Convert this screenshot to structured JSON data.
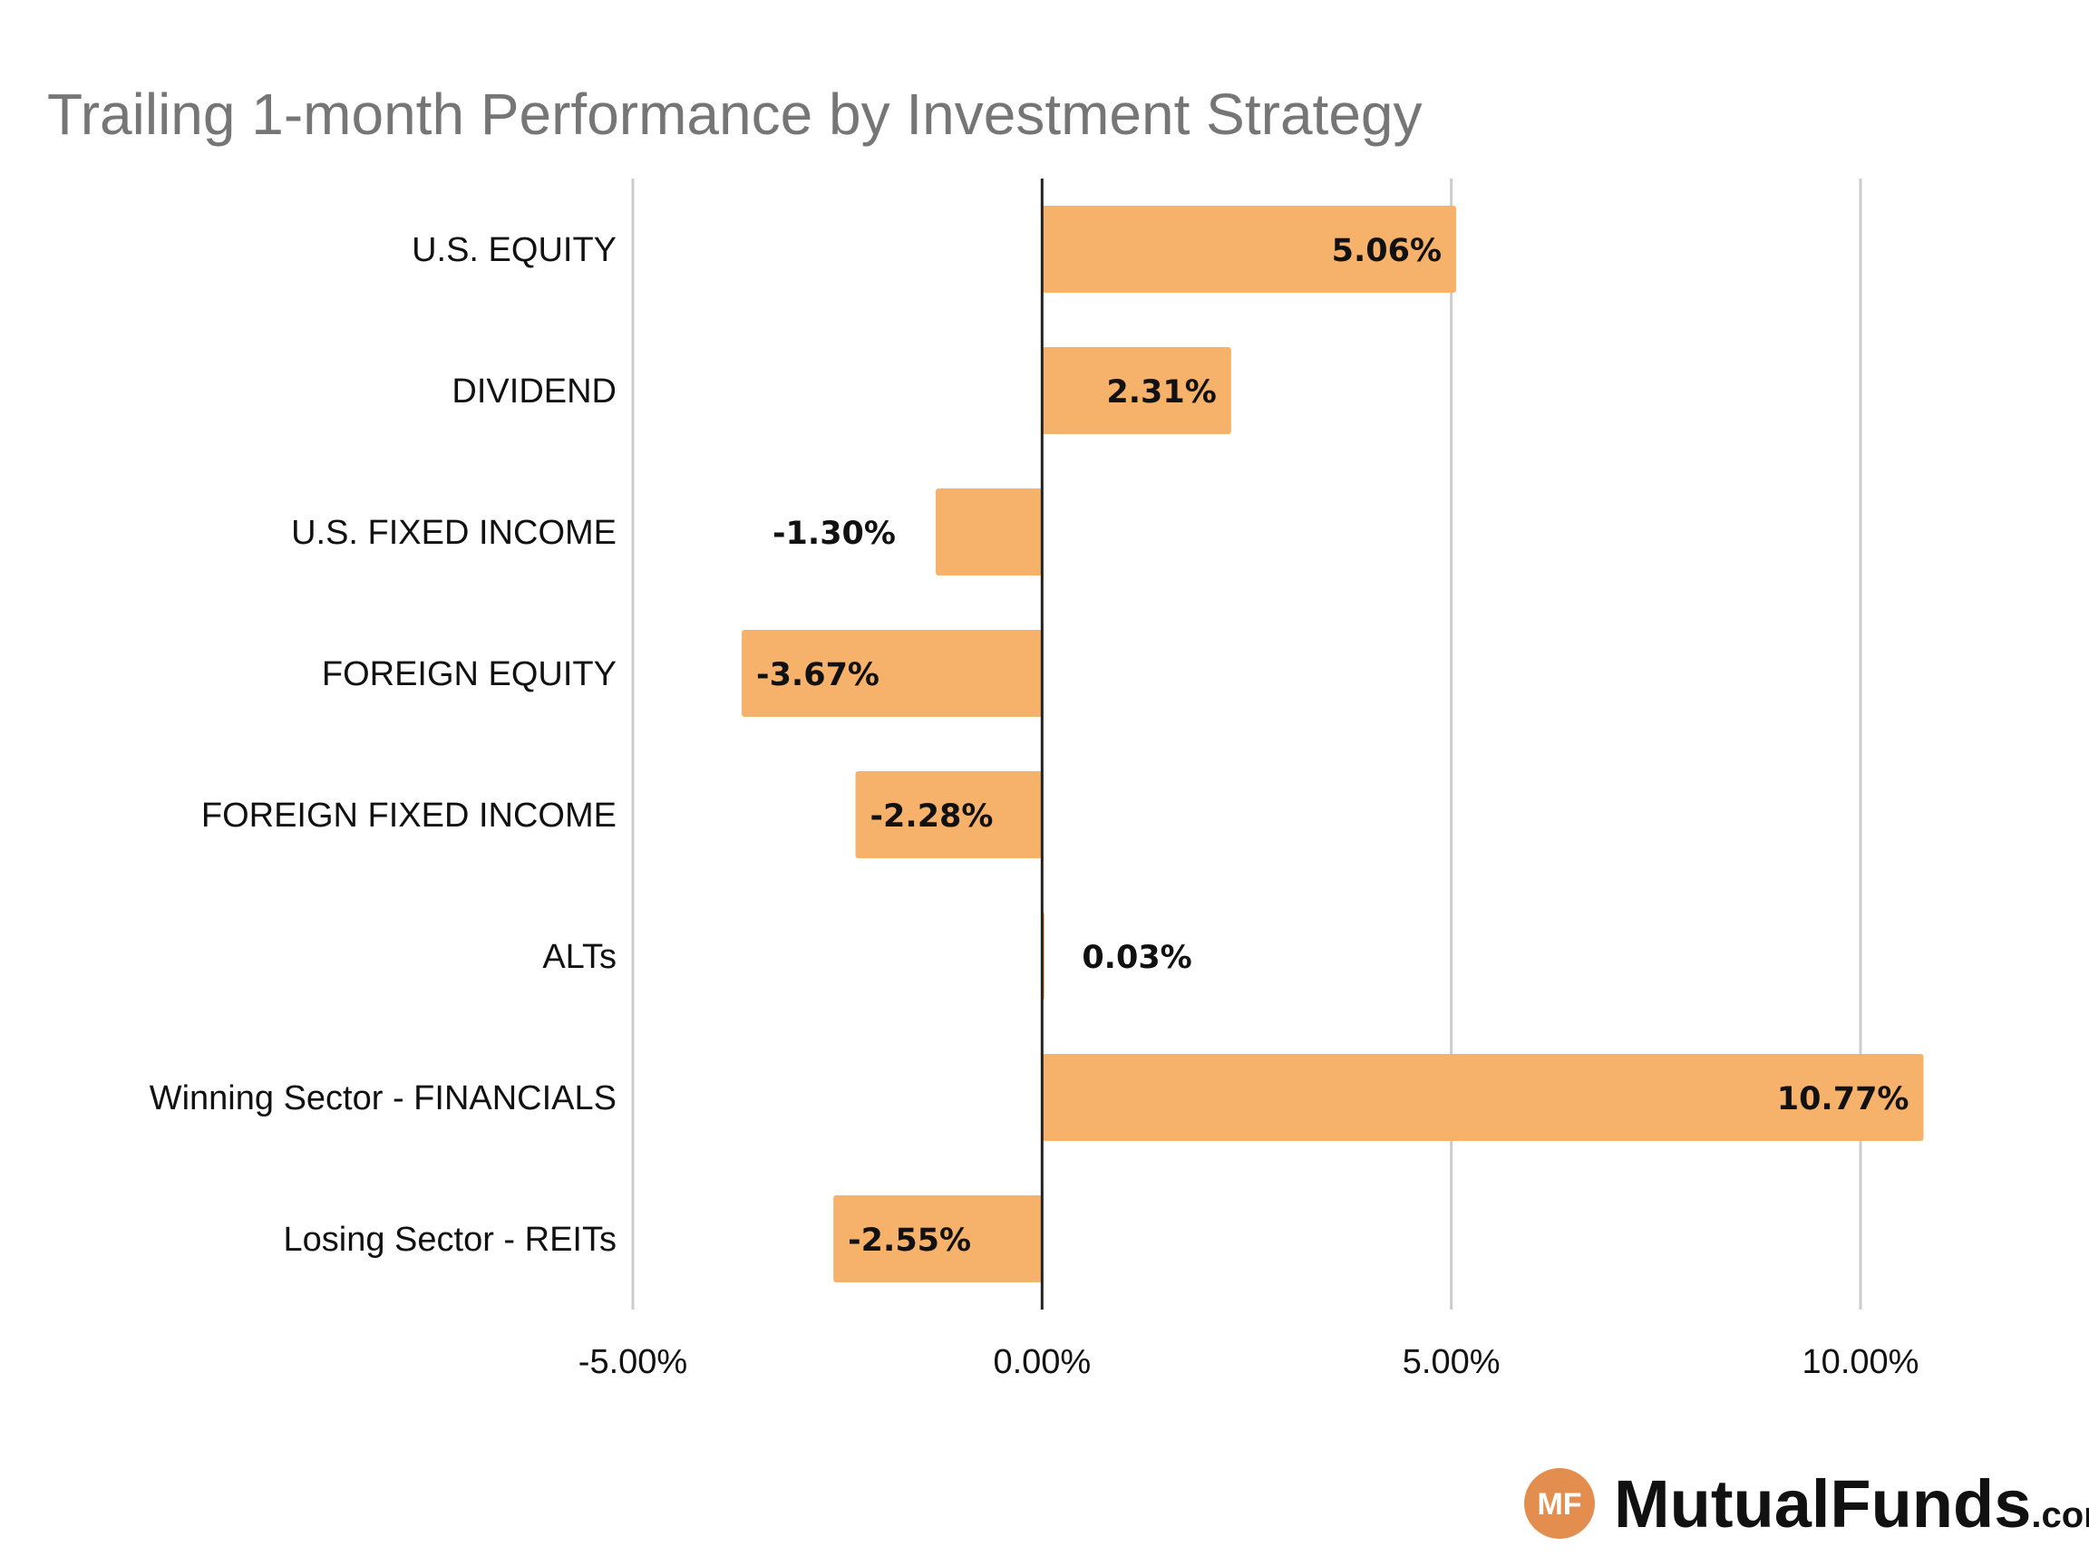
{
  "chart_data": {
    "type": "bar",
    "orientation": "horizontal",
    "title": "Trailing 1-month Performance by Investment Strategy",
    "categories": [
      "U.S. EQUITY",
      "DIVIDEND",
      "U.S. FIXED INCOME",
      "FOREIGN EQUITY",
      "FOREIGN FIXED INCOME",
      "ALTs",
      "Winning Sector - FINANCIALS",
      "Losing Sector - REITs"
    ],
    "values": [
      5.06,
      2.31,
      -1.3,
      -3.67,
      -2.28,
      0.03,
      10.77,
      -2.55
    ],
    "data_labels": [
      "5.06%",
      "2.31%",
      "-1.30%",
      "-3.67%",
      "-2.28%",
      "0.03%",
      "10.77%",
      "-2.55%"
    ],
    "xlim": [
      -5,
      10
    ],
    "x_ticks": [
      -5,
      0,
      5,
      10
    ],
    "x_tick_labels": [
      "-5.00%",
      "0.00%",
      "5.00%",
      "10.00%"
    ],
    "grid": "vertical",
    "bar_color": "#F6B26B",
    "zero_line_color": "#222222",
    "grid_color": "#CCCCCC"
  },
  "branding": {
    "badge": "MF",
    "name": "MutualFunds",
    "suffix": ".com",
    "badge_color": "#E38E4F"
  }
}
